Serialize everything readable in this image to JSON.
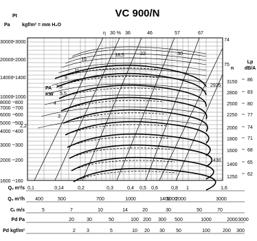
{
  "chart_data": {
    "type": "line",
    "title": "VC 900/N",
    "left_axis": {
      "label_pa": "Pa",
      "label_pt": "Pt",
      "label_kgf": "kgf/m² = mm H₂O",
      "pa_ticks": [
        "30000",
        "20000",
        "14000",
        "10000",
        "8000",
        "7000",
        "6000",
        "5000",
        "4000",
        "3000",
        "2000",
        "1600"
      ],
      "kgf_ticks": [
        "3000",
        "2000",
        "1400",
        "1000",
        "800",
        "700",
        "600",
        "500",
        "400",
        "300",
        "200",
        "160"
      ]
    },
    "rpm_axis": {
      "label": "n",
      "ticks": [
        "3150",
        "2925",
        "2800",
        "2500",
        "2250",
        "2000",
        "1800",
        "1600",
        "1430",
        "1400",
        "1250"
      ]
    },
    "lp_axis": {
      "label": "Lp",
      "unit": "dB/A",
      "ticks": [
        "86",
        "83",
        "80",
        "77",
        "74",
        "71",
        "68",
        "65",
        "62"
      ]
    },
    "efficiency_lines": {
      "label": "η",
      "values": [
        "30 %",
        "36",
        "46",
        "57",
        "67",
        "74",
        "75"
      ]
    },
    "power_lines": {
      "label_pa": "PA",
      "label_kw": "KW",
      "values": [
        "2,2",
        "3",
        "4",
        "5,5",
        "7,5",
        "9",
        "11",
        "15",
        "18,5",
        "22",
        "30"
      ]
    },
    "bottom_axes": [
      {
        "label": "Qᵥ m³/s",
        "ticks": [
          "0,1",
          "0,14",
          "0,2",
          "0,3",
          "0,4",
          "0,5",
          "0,6",
          "0,8",
          "1",
          "1,6"
        ]
      },
      {
        "label": "Qᵥ m³/h",
        "ticks": [
          "400",
          "500",
          "700",
          "1000",
          "1400",
          "2000",
          "3000",
          "5000"
        ]
      },
      {
        "label": "Cₜ m/s",
        "ticks": [
          "5",
          "7",
          "10",
          "14",
          "20",
          "30",
          "50",
          "70"
        ]
      },
      {
        "label": "Pd Pa",
        "ticks": [
          "20",
          "30",
          "50",
          "100",
          "200",
          "300",
          "500",
          "1000",
          "2000",
          "3000"
        ]
      },
      {
        "label": "Pd kgf/m²",
        "ticks": [
          "2",
          "3",
          "5",
          "10",
          "20",
          "30",
          "50",
          "100",
          "200",
          "300"
        ]
      }
    ]
  }
}
